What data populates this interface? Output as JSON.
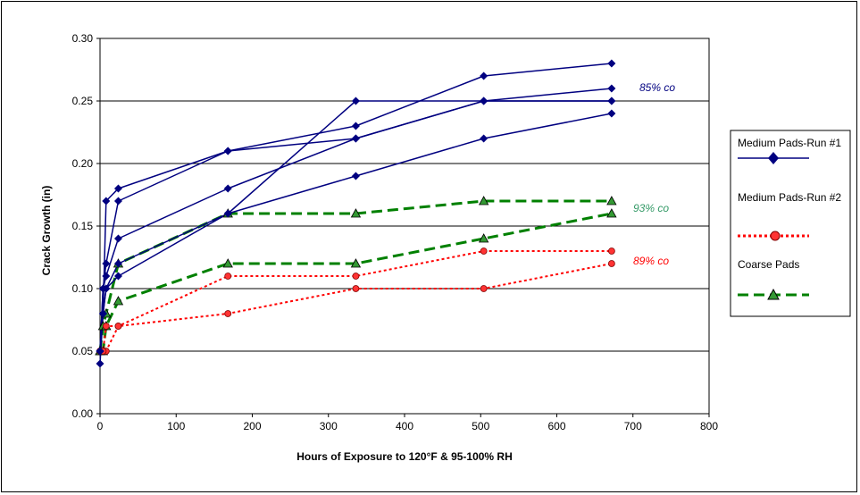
{
  "chart_data": {
    "type": "line",
    "title": "",
    "xlabel": "Hours of Exposure to 120°F & 95-100% RH",
    "ylabel": "Crack Growth (in)",
    "xlim": [
      0,
      800
    ],
    "ylim": [
      0,
      0.3
    ],
    "x_ticks": [
      "0",
      "100",
      "200",
      "300",
      "400",
      "500",
      "600",
      "700",
      "800"
    ],
    "y_ticks": [
      "0.00",
      "0.05",
      "0.10",
      "0.15",
      "0.20",
      "0.25",
      "0.30"
    ],
    "grid": "horizontal",
    "legend_position": "right",
    "legend": [
      {
        "label": "Medium Pads-Run #1",
        "color": "#000080",
        "marker": "diamond",
        "dash": "solid"
      },
      {
        "label": "Medium Pads-Run #2",
        "color": "#ff0000",
        "marker": "circle",
        "dash": "dotted"
      },
      {
        "label": "Coarse Pads",
        "color": "#008000",
        "marker": "triangle",
        "dash": "dashed"
      }
    ],
    "annotations": [
      {
        "text": "85% co",
        "color": "#000080"
      },
      {
        "text": "93% co",
        "color": "#339966"
      },
      {
        "text": "89% co",
        "color": "#ff0000"
      }
    ],
    "series": [
      {
        "group": "Medium Pads-Run #1",
        "points": [
          [
            0,
            0.04
          ],
          [
            4,
            0.08
          ],
          [
            8,
            0.17
          ],
          [
            24,
            0.18
          ],
          [
            168,
            0.21
          ],
          [
            336,
            0.22
          ],
          [
            504,
            0.25
          ],
          [
            672,
            0.26
          ]
        ]
      },
      {
        "group": "Medium Pads-Run #1",
        "points": [
          [
            0,
            0.05
          ],
          [
            4,
            0.1
          ],
          [
            8,
            0.12
          ],
          [
            24,
            0.17
          ],
          [
            168,
            0.21
          ],
          [
            336,
            0.23
          ],
          [
            504,
            0.27
          ],
          [
            672,
            0.28
          ]
        ]
      },
      {
        "group": "Medium Pads-Run #1",
        "points": [
          [
            0,
            0.05
          ],
          [
            4,
            0.1
          ],
          [
            8,
            0.11
          ],
          [
            24,
            0.14
          ],
          [
            168,
            0.18
          ],
          [
            336,
            0.22
          ],
          [
            504,
            0.25
          ],
          [
            672,
            0.25
          ]
        ]
      },
      {
        "group": "Medium Pads-Run #1",
        "points": [
          [
            0,
            0.05
          ],
          [
            4,
            0.08
          ],
          [
            8,
            0.1
          ],
          [
            24,
            0.11
          ],
          [
            168,
            0.16
          ],
          [
            336,
            0.25
          ],
          [
            504,
            0.25
          ],
          [
            672,
            0.25
          ]
        ]
      },
      {
        "group": "Medium Pads-Run #1",
        "points": [
          [
            0,
            0.05
          ],
          [
            4,
            0.08
          ],
          [
            8,
            0.1
          ],
          [
            24,
            0.12
          ],
          [
            168,
            0.16
          ],
          [
            336,
            0.19
          ],
          [
            504,
            0.22
          ],
          [
            672,
            0.24
          ]
        ]
      },
      {
        "group": "Medium Pads-Run #2",
        "points": [
          [
            0,
            0.05
          ],
          [
            4,
            0.05
          ],
          [
            8,
            0.05
          ],
          [
            24,
            0.07
          ],
          [
            168,
            0.11
          ],
          [
            336,
            0.11
          ],
          [
            504,
            0.13
          ],
          [
            672,
            0.13
          ]
        ]
      },
      {
        "group": "Medium Pads-Run #2",
        "points": [
          [
            0,
            0.05
          ],
          [
            4,
            0.05
          ],
          [
            8,
            0.07
          ],
          [
            24,
            0.07
          ],
          [
            168,
            0.08
          ],
          [
            336,
            0.1
          ],
          [
            504,
            0.1
          ],
          [
            672,
            0.12
          ]
        ]
      },
      {
        "group": "Coarse Pads",
        "points": [
          [
            0,
            0.05
          ],
          [
            4,
            0.07
          ],
          [
            8,
            0.08
          ],
          [
            24,
            0.12
          ],
          [
            168,
            0.16
          ],
          [
            336,
            0.16
          ],
          [
            504,
            0.17
          ],
          [
            672,
            0.17
          ]
        ]
      },
      {
        "group": "Coarse Pads",
        "points": [
          [
            0,
            0.05
          ],
          [
            4,
            0.05
          ],
          [
            8,
            0.07
          ],
          [
            24,
            0.09
          ],
          [
            168,
            0.12
          ],
          [
            336,
            0.12
          ],
          [
            504,
            0.14
          ],
          [
            672,
            0.16
          ]
        ]
      }
    ]
  }
}
